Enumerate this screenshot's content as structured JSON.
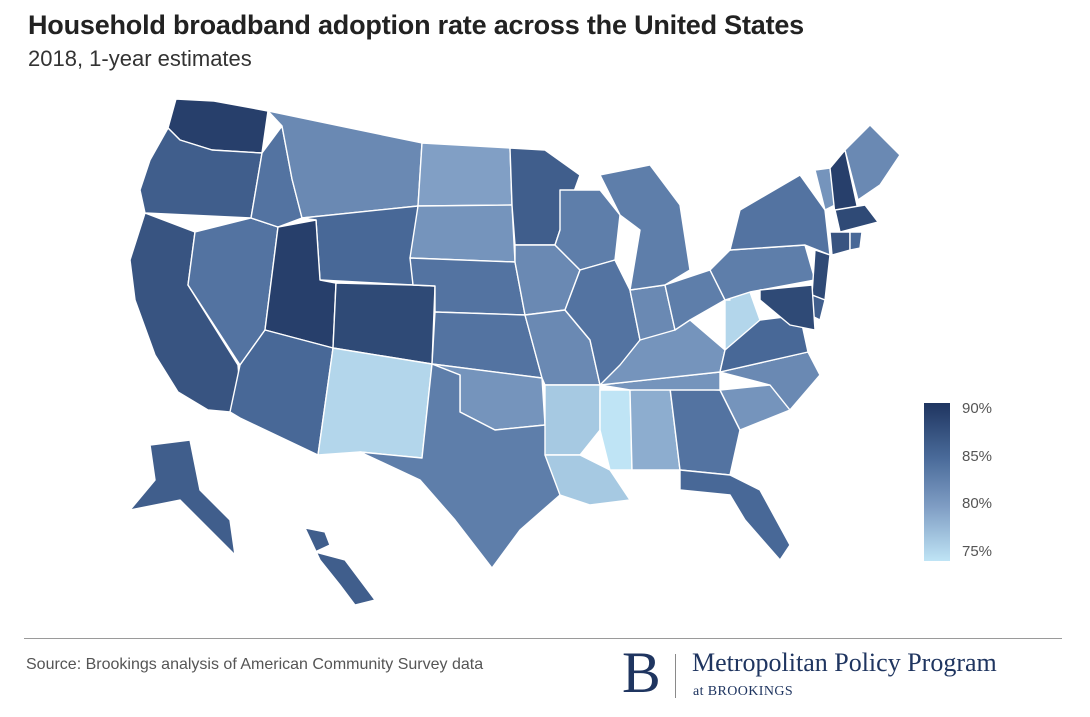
{
  "title": "Household broadband adoption rate across the United States",
  "subtitle": "2018, 1-year estimates",
  "legend": {
    "labels": [
      "90%",
      "85%",
      "80%",
      "75%"
    ],
    "scale_min": 75,
    "scale_max": 90,
    "colors": {
      "high": "#1f3560",
      "mid": "#4a6b9a",
      "low_mid": "#7e9cc3",
      "low": "#bfe4f5"
    }
  },
  "source": "Source: Brookings analysis of American Community Survey data",
  "logo": {
    "mark": "B",
    "name": "Metropolitan Policy Program",
    "sub": "at BROOKINGS"
  },
  "map_data": {
    "type": "choropleth",
    "region": "United States",
    "levels": {
      "WA": 89,
      "OR": 86,
      "CA": 87,
      "NV": 84,
      "ID": 84,
      "MT": 82,
      "WY": 85,
      "UT": 89,
      "CO": 88,
      "AZ": 85,
      "NM": 76,
      "ND": 80,
      "SD": 81,
      "NE": 84,
      "KS": 84,
      "OK": 81,
      "TX": 83,
      "MN": 86,
      "IA": 82,
      "MO": 82,
      "AR": 77,
      "LA": 77,
      "MS": 75,
      "AL": 79,
      "GA": 84,
      "FL": 85,
      "SC": 81,
      "NC": 82,
      "TN": 81,
      "KY": 81,
      "WV": 76,
      "VA": 85,
      "WI": 83,
      "IL": 84,
      "IN": 82,
      "MI": 83,
      "OH": 83,
      "PA": 83,
      "NY": 84,
      "VT": 81,
      "NH": 89,
      "ME": 82,
      "MA": 88,
      "CT": 87,
      "RI": 85,
      "NJ": 88,
      "DE": 86,
      "MD": 88,
      "AK": 86,
      "HI": 86
    }
  }
}
